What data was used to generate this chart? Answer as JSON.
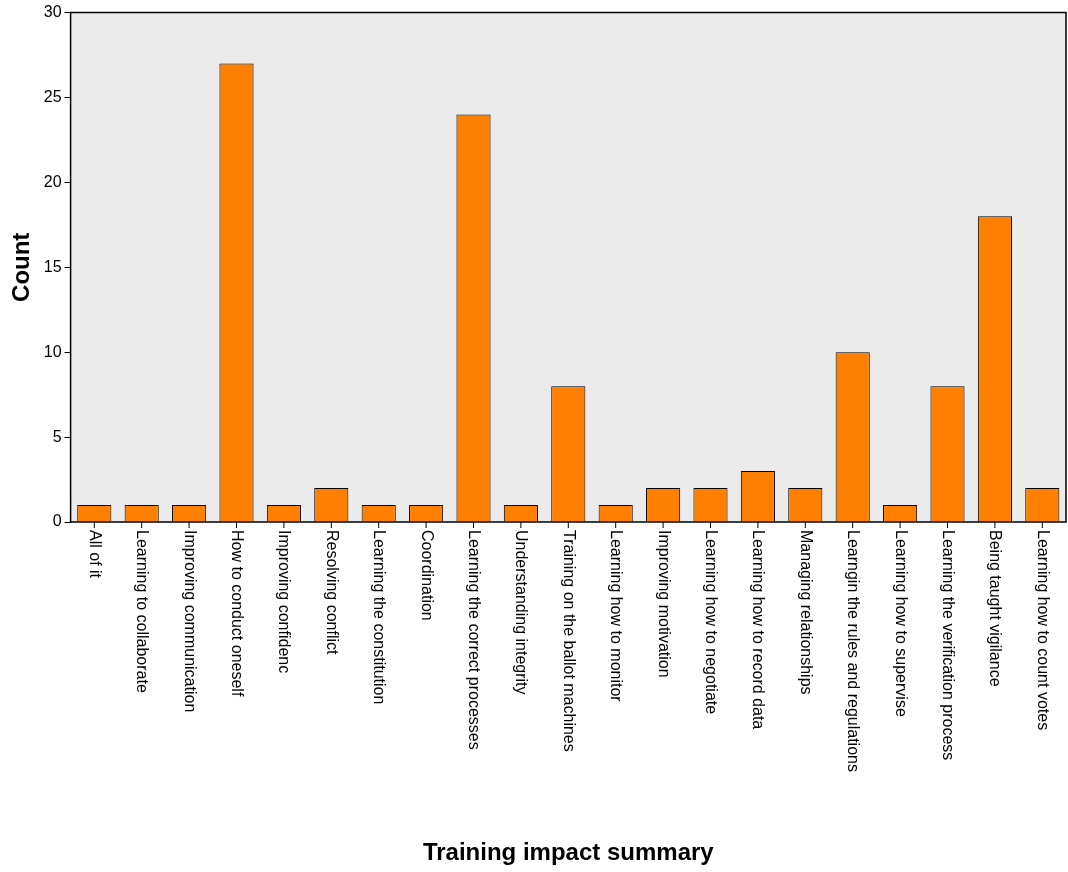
{
  "chart_data": {
    "type": "bar",
    "xlabel": "Training impact summary",
    "ylabel": "Count",
    "categories": [
      "All of it",
      "Learning to collaborate",
      "Improving communication",
      "How to conduct oneself",
      "Improving confidenc",
      "Resolving conflict",
      "Learning the constitution",
      "Coordination",
      "Learning the correct processes",
      "Understanding integrity",
      "Training on the ballot machines",
      "Learning how to monitor",
      "Improving motivation",
      "Learning how to negotiate",
      "Learning how to record data",
      "Managing relationships",
      "Learngin the rules and regulations",
      "Learning how to supervise",
      "Learning the verification process",
      "Being taught vigilance",
      "Learning how to count votes"
    ],
    "values": [
      1,
      1,
      1,
      27,
      1,
      2,
      1,
      1,
      24,
      1,
      8,
      1,
      2,
      2,
      3,
      2,
      10,
      1,
      8,
      18,
      2
    ],
    "color": "#ff8000",
    "ylim": [
      0,
      30
    ],
    "yticks": [
      0,
      5,
      10,
      15,
      20,
      25,
      30
    ],
    "grid": false,
    "legend": false
  }
}
